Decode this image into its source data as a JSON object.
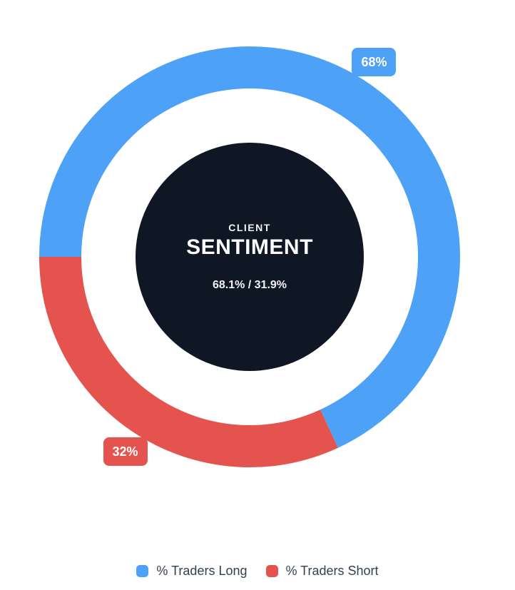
{
  "chart_data": {
    "type": "pie",
    "variant": "donut",
    "title": "CLIENT SENTIMENT",
    "categories": [
      "% Traders Long",
      "% Traders Short"
    ],
    "values": [
      68.1,
      31.9
    ],
    "series": [
      {
        "name": "% Traders Long",
        "value": 68.1,
        "color": "#4DA1F7",
        "data_label": "68%"
      },
      {
        "name": "% Traders Short",
        "value": 31.9,
        "color": "#E5534F",
        "data_label": "32%"
      }
    ],
    "start_angle_deg": 270,
    "direction": "clockwise",
    "legend_position": "bottom",
    "center_text": [
      "CLIENT",
      "SENTIMENT",
      "68.1% / 31.9%"
    ]
  },
  "center": {
    "title": "CLIENT",
    "heading": "SENTIMENT",
    "ratio": "68.1% / 31.9%"
  },
  "legend": {
    "items": [
      {
        "label": "% Traders Long",
        "color": "#4DA1F7"
      },
      {
        "label": "% Traders Short",
        "color": "#E5534F"
      }
    ]
  },
  "colors": {
    "long": "#4DA1F7",
    "short": "#E5534F",
    "center_disc": "#0F1624",
    "badge_text": "#FFFFFF",
    "legend_text": "#33404F",
    "background": "#FFFFFF"
  }
}
